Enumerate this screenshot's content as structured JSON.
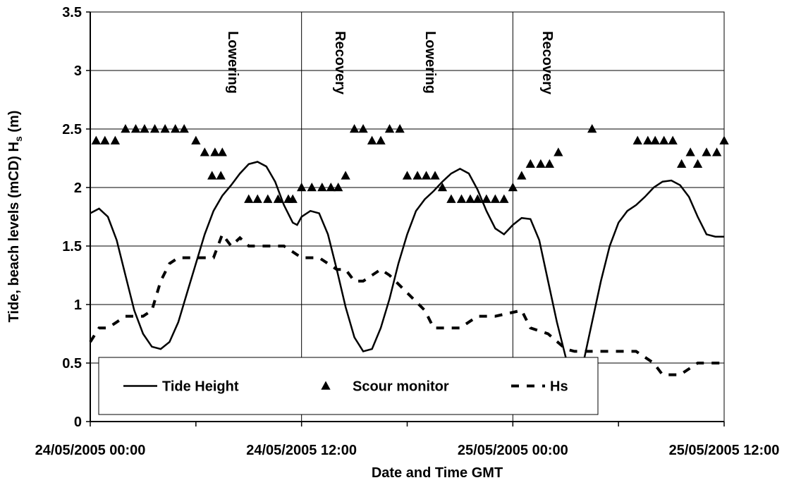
{
  "chart_data": {
    "type": "line",
    "ylabel": [
      "Tide, beach levels (mCD) H",
      "s",
      " (m)"
    ],
    "xlabel": "Date and Time GMT",
    "xlim": [
      "2005-05-24T00:00",
      "2005-05-25T12:00"
    ],
    "xticks": [
      {
        "value": "2005-05-24T00:00",
        "label": "24/05/2005 00:00"
      },
      {
        "value": "2005-05-24T06:00",
        "label": null
      },
      {
        "value": "2005-05-24T12:00",
        "label": "24/05/2005 12:00"
      },
      {
        "value": "2005-05-24T18:00",
        "label": null
      },
      {
        "value": "2005-05-25T00:00",
        "label": "25/05/2005 00:00"
      },
      {
        "value": "2005-05-25T06:00",
        "label": null
      },
      {
        "value": "2005-05-25T12:00",
        "label": "25/05/2005 12:00"
      }
    ],
    "ylim": [
      0,
      3.5
    ],
    "yticks": [
      0,
      0.5,
      1,
      1.5,
      2,
      2.5,
      3,
      3.5
    ],
    "grid": true,
    "legend": "lower left",
    "annotations": [
      "Lowering",
      "Recovery",
      "Lowering",
      "Recovery"
    ],
    "series": [
      {
        "name": "Tide Height",
        "color": "#000000",
        "style": "solid",
        "x": [
          "2005-05-24T00:00",
          "2005-05-24T00:30",
          "2005-05-24T01:00",
          "2005-05-24T01:30",
          "2005-05-24T02:00",
          "2005-05-24T02:30",
          "2005-05-24T03:00",
          "2005-05-24T03:30",
          "2005-05-24T04:00",
          "2005-05-24T04:30",
          "2005-05-24T05:00",
          "2005-05-24T05:30",
          "2005-05-24T06:00",
          "2005-05-24T06:30",
          "2005-05-24T07:00",
          "2005-05-24T07:30",
          "2005-05-24T08:00",
          "2005-05-24T08:30",
          "2005-05-24T09:00",
          "2005-05-24T09:30",
          "2005-05-24T10:00",
          "2005-05-24T10:30",
          "2005-05-24T11:00",
          "2005-05-24T11:30",
          "2005-05-24T11:45",
          "2005-05-24T12:00",
          "2005-05-24T12:30",
          "2005-05-24T13:00",
          "2005-05-24T13:30",
          "2005-05-24T14:00",
          "2005-05-24T14:30",
          "2005-05-24T15:00",
          "2005-05-24T15:30",
          "2005-05-24T16:00",
          "2005-05-24T16:30",
          "2005-05-24T17:00",
          "2005-05-24T17:30",
          "2005-05-24T18:00",
          "2005-05-24T18:30",
          "2005-05-24T19:00",
          "2005-05-24T19:30",
          "2005-05-24T20:00",
          "2005-05-24T20:30",
          "2005-05-24T21:00",
          "2005-05-24T21:30",
          "2005-05-24T22:00",
          "2005-05-24T22:30",
          "2005-05-24T23:00",
          "2005-05-24T23:30",
          "2005-05-25T00:00",
          "2005-05-25T00:30",
          "2005-05-25T01:00",
          "2005-05-25T01:30",
          "2005-05-25T02:00",
          "2005-05-25T02:30",
          "2005-05-25T03:00",
          "2005-05-25T03:30",
          "2005-05-25T04:00",
          "2005-05-25T04:30",
          "2005-05-25T05:00",
          "2005-05-25T05:30",
          "2005-05-25T06:00",
          "2005-05-25T06:30",
          "2005-05-25T07:00",
          "2005-05-25T07:30",
          "2005-05-25T08:00",
          "2005-05-25T08:30",
          "2005-05-25T09:00",
          "2005-05-25T09:30",
          "2005-05-25T10:00",
          "2005-05-25T10:30",
          "2005-05-25T11:00",
          "2005-05-25T11:30",
          "2005-05-25T12:00"
        ],
        "values": [
          1.78,
          1.82,
          1.75,
          1.55,
          1.25,
          0.95,
          0.75,
          0.64,
          0.62,
          0.68,
          0.85,
          1.1,
          1.35,
          1.6,
          1.8,
          1.93,
          2.02,
          2.12,
          2.2,
          2.22,
          2.18,
          2.05,
          1.85,
          1.7,
          1.68,
          1.75,
          1.8,
          1.78,
          1.6,
          1.3,
          0.98,
          0.72,
          0.6,
          0.62,
          0.8,
          1.05,
          1.35,
          1.6,
          1.8,
          1.9,
          1.97,
          2.05,
          2.12,
          2.16,
          2.12,
          1.98,
          1.8,
          1.65,
          1.6,
          1.68,
          1.74,
          1.73,
          1.55,
          1.2,
          0.85,
          0.55,
          0.42,
          0.5,
          0.85,
          1.2,
          1.5,
          1.7,
          1.8,
          1.85,
          1.92,
          2.0,
          2.05,
          2.06,
          2.02,
          1.92,
          1.75,
          1.6,
          1.58,
          1.58
        ]
      },
      {
        "name": "Scour monitor",
        "color": "#000000",
        "style": "none",
        "marker": "triangle",
        "x": [
          "2005-05-24T00:20",
          "2005-05-24T00:50",
          "2005-05-24T01:25",
          "2005-05-24T02:00",
          "2005-05-24T02:35",
          "2005-05-24T03:05",
          "2005-05-24T03:40",
          "2005-05-24T04:15",
          "2005-05-24T04:50",
          "2005-05-24T05:20",
          "2005-05-24T06:00",
          "2005-05-24T06:30",
          "2005-05-24T07:05",
          "2005-05-24T07:30",
          "2005-05-24T06:55",
          "2005-05-24T07:25",
          "2005-05-24T09:00",
          "2005-05-24T09:30",
          "2005-05-24T10:05",
          "2005-05-24T10:40",
          "2005-05-24T11:15",
          "2005-05-24T11:30",
          "2005-05-24T12:00",
          "2005-05-24T12:35",
          "2005-05-24T13:10",
          "2005-05-24T13:40",
          "2005-05-24T14:05",
          "2005-05-24T14:30",
          "2005-05-24T15:00",
          "2005-05-24T15:30",
          "2005-05-24T16:00",
          "2005-05-24T16:30",
          "2005-05-24T17:00",
          "2005-05-24T17:35",
          "2005-05-24T18:00",
          "2005-05-24T18:35",
          "2005-05-24T19:05",
          "2005-05-24T19:35",
          "2005-05-24T20:00",
          "2005-05-24T20:30",
          "2005-05-24T21:05",
          "2005-05-24T21:35",
          "2005-05-24T22:00",
          "2005-05-24T22:30",
          "2005-05-24T23:00",
          "2005-05-24T23:30",
          "2005-05-25T00:00",
          "2005-05-25T00:30",
          "2005-05-25T01:00",
          "2005-05-25T01:35",
          "2005-05-25T02:05",
          "2005-05-25T02:35",
          "2005-05-25T04:30",
          "2005-05-25T07:05",
          "2005-05-25T07:40",
          "2005-05-25T08:05",
          "2005-05-25T08:35",
          "2005-05-25T09:05",
          "2005-05-25T09:35",
          "2005-05-25T10:05",
          "2005-05-25T10:30",
          "2005-05-25T11:00",
          "2005-05-25T11:35",
          "2005-05-25T12:00"
        ],
        "values": [
          2.4,
          2.4,
          2.4,
          2.5,
          2.5,
          2.5,
          2.5,
          2.5,
          2.5,
          2.5,
          2.4,
          2.3,
          2.3,
          2.3,
          2.1,
          2.1,
          1.9,
          1.9,
          1.9,
          1.9,
          1.9,
          1.9,
          2.0,
          2.0,
          2.0,
          2.0,
          2.0,
          2.1,
          2.5,
          2.5,
          2.4,
          2.4,
          2.5,
          2.5,
          2.1,
          2.1,
          2.1,
          2.1,
          2.0,
          1.9,
          1.9,
          1.9,
          1.9,
          1.9,
          1.9,
          1.9,
          2.0,
          2.1,
          2.2,
          2.2,
          2.2,
          2.3,
          2.5,
          2.4,
          2.4,
          2.4,
          2.4,
          2.4,
          2.2,
          2.3,
          2.2,
          2.3,
          2.3,
          2.4
        ]
      },
      {
        "name": "Hs",
        "color": "#000000",
        "style": "dashed",
        "x": [
          "2005-05-24T00:00",
          "2005-05-24T00:30",
          "2005-05-24T01:00",
          "2005-05-24T01:30",
          "2005-05-24T02:00",
          "2005-05-24T03:00",
          "2005-05-24T03:30",
          "2005-05-24T04:00",
          "2005-05-24T04:30",
          "2005-05-24T05:00",
          "2005-05-24T07:00",
          "2005-05-24T07:30",
          "2005-05-24T08:00",
          "2005-05-24T08:30",
          "2005-05-24T09:00",
          "2005-05-24T11:00",
          "2005-05-24T12:00",
          "2005-05-24T13:00",
          "2005-05-24T14:00",
          "2005-05-24T14:30",
          "2005-05-24T15:00",
          "2005-05-24T15:30",
          "2005-05-24T16:30",
          "2005-05-24T17:00",
          "2005-05-24T18:00",
          "2005-05-24T19:00",
          "2005-05-24T19:30",
          "2005-05-24T21:00",
          "2005-05-24T22:00",
          "2005-05-24T23:00",
          "2005-05-25T00:30",
          "2005-05-25T01:00",
          "2005-05-25T02:00",
          "2005-05-25T03:00",
          "2005-05-25T03:30",
          "2005-05-25T05:30",
          "2005-05-25T07:00",
          "2005-05-25T08:00",
          "2005-05-25T08:30",
          "2005-05-25T09:30",
          "2005-05-25T10:30",
          "2005-05-25T12:00"
        ],
        "values": [
          0.68,
          0.8,
          0.8,
          0.85,
          0.9,
          0.9,
          0.95,
          1.2,
          1.35,
          1.4,
          1.4,
          1.6,
          1.5,
          1.57,
          1.5,
          1.5,
          1.4,
          1.4,
          1.3,
          1.3,
          1.2,
          1.2,
          1.3,
          1.25,
          1.1,
          0.95,
          0.8,
          0.8,
          0.9,
          0.9,
          0.95,
          0.8,
          0.75,
          0.62,
          0.6,
          0.6,
          0.6,
          0.5,
          0.4,
          0.4,
          0.5,
          0.5
        ]
      }
    ]
  }
}
